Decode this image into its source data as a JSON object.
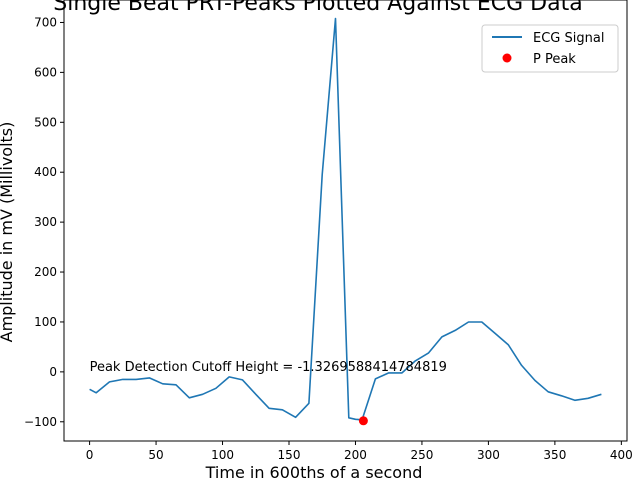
{
  "chart_data": {
    "type": "line",
    "title": "Single Beat PRT-Peaks Plotted Against ECG Data",
    "xlabel": "Time in 600ths of a second",
    "ylabel": "Amplitude in mV (Millivolts)",
    "xlim": [
      -19.25,
      404.25
    ],
    "ylim": [
      -138.5,
      745
    ],
    "xticks": [
      0,
      50,
      100,
      150,
      200,
      250,
      300,
      350,
      400
    ],
    "yticks": [
      -100,
      0,
      100,
      200,
      300,
      400,
      500,
      600,
      700
    ],
    "grid": false,
    "legend_position": "top-right",
    "series": [
      {
        "name": "ECG Signal",
        "kind": "line",
        "color": "#1f77b4",
        "x": [
          0,
          5,
          15,
          25,
          35,
          45,
          55,
          65,
          75,
          85,
          95,
          105,
          115,
          125,
          135,
          145,
          155,
          165,
          175,
          185,
          195,
          200,
          205,
          215,
          225,
          235,
          245,
          255,
          265,
          275,
          285,
          295,
          305,
          315,
          325,
          335,
          345,
          355,
          365,
          375,
          385
        ],
        "y": [
          -35,
          -42,
          -20,
          -15,
          -15,
          -12,
          -24,
          -26,
          -52,
          -45,
          -33,
          -10,
          -16,
          -45,
          -73,
          -76,
          -91,
          -63,
          395,
          708,
          -92,
          -95,
          -96,
          -14,
          -2,
          -2,
          22,
          38,
          70,
          83,
          100,
          100,
          77,
          54,
          13,
          -17,
          -40,
          -48,
          -57,
          -53,
          -45
        ]
      },
      {
        "name": "P Peak",
        "kind": "scatter",
        "color": "#ff0000",
        "x": [
          206
        ],
        "y": [
          -98
        ]
      }
    ],
    "annotations": [
      {
        "text": "Peak Detection Cutoff Height = -1.3269588414784819",
        "x": 0,
        "y": 0
      }
    ]
  }
}
